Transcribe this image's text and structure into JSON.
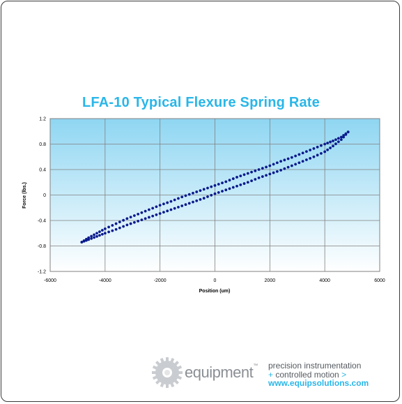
{
  "chart_data": {
    "type": "scatter",
    "title": "LFA-10 Typical Flexure Spring Rate",
    "xlabel": "Position (um)",
    "ylabel": "Force (lbs.)",
    "xlim": [
      -6000,
      6000
    ],
    "ylim": [
      -1.2,
      1.2
    ],
    "x_ticks": [
      "-6000",
      "-4000",
      "-2000",
      "0",
      "2000",
      "4000",
      "6000"
    ],
    "y_ticks": [
      "1.2",
      "0.8",
      "0.4",
      "0",
      "-0.4",
      "-0.8",
      "-1.2"
    ],
    "grid": true,
    "legend": "none",
    "marker_color": "#0a1a8c",
    "series": [
      {
        "x": [
          -4850,
          -4600,
          -4300,
          -4000,
          -3600,
          -3200,
          -2800,
          -2400,
          -2000,
          -1600,
          -1200,
          -800,
          -400,
          0,
          400,
          800,
          1200,
          1600,
          2000,
          2400,
          2800,
          3200,
          3600,
          4000,
          4300,
          4600,
          4850
        ],
        "y": [
          -0.74,
          -0.7,
          -0.65,
          -0.6,
          -0.54,
          -0.47,
          -0.41,
          -0.35,
          -0.29,
          -0.23,
          -0.17,
          -0.11,
          -0.05,
          0.02,
          0.08,
          0.14,
          0.2,
          0.27,
          0.33,
          0.39,
          0.46,
          0.53,
          0.6,
          0.68,
          0.77,
          0.87,
          0.99
        ]
      },
      {
        "x": [
          4850,
          4600,
          4300,
          4000,
          3600,
          3200,
          2800,
          2400,
          2000,
          1600,
          1200,
          800,
          400,
          0,
          -400,
          -800,
          -1200,
          -1600,
          -2000,
          -2400,
          -2800,
          -3200,
          -3600,
          -4000,
          -4300,
          -4600,
          -4850
        ],
        "y": [
          0.99,
          0.91,
          0.85,
          0.8,
          0.73,
          0.66,
          0.59,
          0.53,
          0.46,
          0.4,
          0.34,
          0.28,
          0.21,
          0.15,
          0.09,
          0.03,
          -0.03,
          -0.1,
          -0.16,
          -0.23,
          -0.3,
          -0.37,
          -0.45,
          -0.53,
          -0.6,
          -0.67,
          -0.74
        ]
      }
    ]
  },
  "footer": {
    "brand": "equipment",
    "tagline_1": "precision instrumentation",
    "tagline_2": "controlled motion",
    "website": "www.equipsolutions.com"
  }
}
